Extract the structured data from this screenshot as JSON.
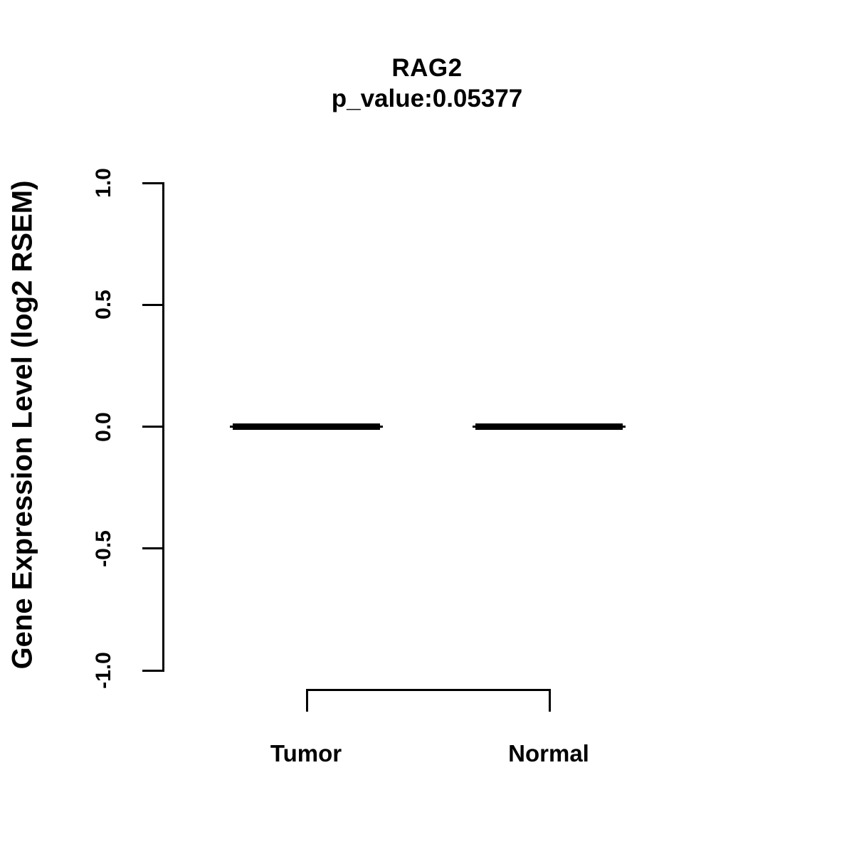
{
  "title": "RAG2",
  "subtitle": "p_value:0.05377",
  "chart_data": {
    "type": "boxplot",
    "title": "RAG2",
    "subtitle": "p_value:0.05377",
    "p_value": 0.05377,
    "ylabel": "Gene Expression Level (log2 RSEM)",
    "xlabel": "",
    "ylim": [
      -1.0,
      1.0
    ],
    "yticks": [
      1.0,
      0.5,
      0.0,
      -0.5,
      -1.0
    ],
    "ytick_labels": [
      "1.0",
      "0.5",
      "0.0",
      "-0.5",
      "-1.0"
    ],
    "categories": [
      "Tumor",
      "Normal"
    ],
    "series": [
      {
        "name": "Tumor",
        "median": 0.0,
        "q1": 0.0,
        "q3": 0.0,
        "whisker_low": 0.0,
        "whisker_high": 0.0
      },
      {
        "name": "Normal",
        "median": 0.0,
        "q1": 0.0,
        "q3": 0.0,
        "whisker_low": 0.0,
        "whisker_high": 0.0
      }
    ],
    "grid": false,
    "legend": false,
    "comparison_bracket": [
      "Tumor",
      "Normal"
    ],
    "colors": {
      "foreground": "#000000",
      "background": "#ffffff"
    }
  }
}
